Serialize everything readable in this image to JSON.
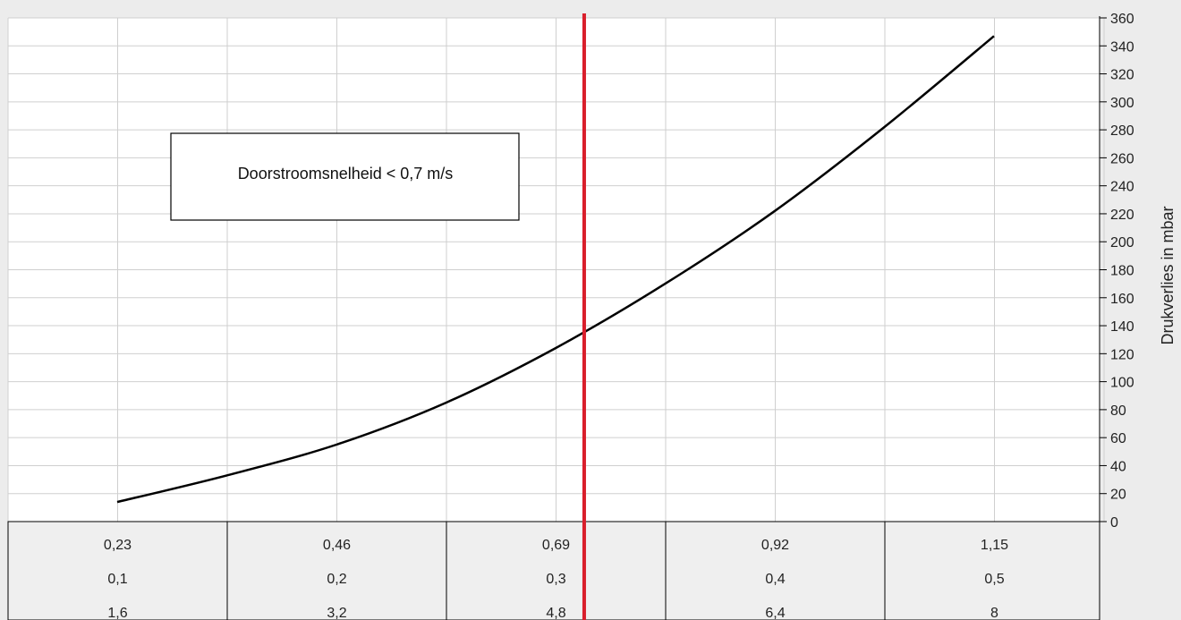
{
  "chart_data": {
    "type": "line",
    "ylabel": "Drukverlies in mbar",
    "ylim": [
      0,
      360
    ],
    "y_ticks": [
      0,
      20,
      40,
      60,
      80,
      100,
      120,
      140,
      160,
      180,
      200,
      220,
      240,
      260,
      280,
      300,
      320,
      340,
      360
    ],
    "grid": true,
    "x_rows": [
      [
        "0,23",
        "0,46",
        "0,69",
        "0,92",
        "1,15"
      ],
      [
        "0,1",
        "0,2",
        "0,3",
        "0,4",
        "0,5"
      ],
      [
        "1,6",
        "3,2",
        "4,8",
        "6,4",
        "8"
      ]
    ],
    "series": [
      {
        "x": [
          0.23,
          0.345,
          0.46,
          0.575,
          0.69,
          0.805,
          0.92,
          1.035,
          1.15
        ],
        "values": [
          14,
          33,
          55,
          85,
          124,
          170,
          222,
          282,
          347
        ]
      }
    ],
    "marker_line": {
      "x": 0.72,
      "color": "#d91e2b"
    },
    "annotation": "Doorstroomsnelheid < 0,7 m/s",
    "line_color": "#000000"
  }
}
